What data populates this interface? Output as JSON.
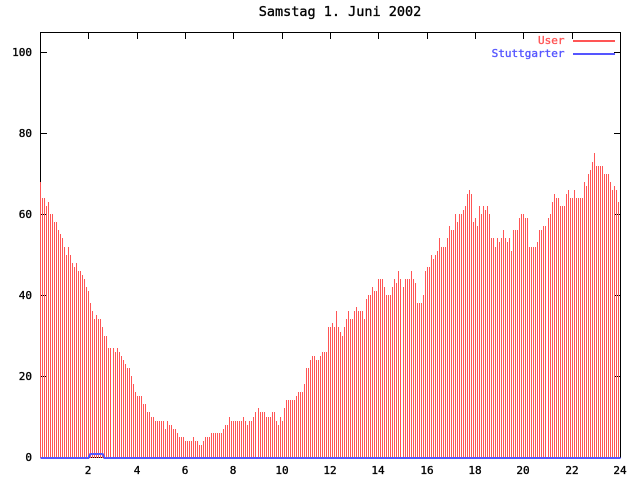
{
  "title": "Samstag 1. Juni 2002",
  "legend": [
    {
      "label": "User",
      "color": "#ff5555"
    },
    {
      "label": "Stuttgarter",
      "color": "#5555ff"
    }
  ],
  "axes": {
    "x": {
      "min": 0,
      "max": 24,
      "tick_labels": [
        "2",
        "4",
        "6",
        "8",
        "10",
        "12",
        "14",
        "16",
        "18",
        "20",
        "22",
        "24"
      ],
      "tick_values": [
        2,
        4,
        6,
        8,
        10,
        12,
        14,
        16,
        18,
        20,
        22,
        24
      ]
    },
    "y": {
      "min": 0,
      "max": 105,
      "tick_labels": [
        "0",
        "20",
        "40",
        "60",
        "80",
        "100"
      ],
      "tick_values": [
        0,
        20,
        40,
        60,
        80,
        100
      ]
    }
  },
  "chart_data": {
    "type": "bar",
    "title": "Samstag 1. Juni 2002",
    "xlabel": "",
    "ylabel": "",
    "xlim": [
      0,
      24
    ],
    "ylim": [
      0,
      105
    ],
    "grid": false,
    "legend_position": "top-right",
    "sampling": "one sample every 5 minutes (288 samples), impulse style bars",
    "x_hours": [
      0.0,
      0.0833,
      0.1667,
      0.25,
      0.3333,
      0.4167,
      0.5,
      0.5833,
      0.6667,
      0.75,
      0.8333,
      0.9167,
      1.0,
      1.0833,
      1.1667,
      1.25,
      1.3333,
      1.4167,
      1.5,
      1.5833,
      1.6667,
      1.75,
      1.8333,
      1.9167,
      2.0,
      2.0833,
      2.1667,
      2.25,
      2.3333,
      2.4167,
      2.5,
      2.5833,
      2.6667,
      2.75,
      2.8333,
      2.9167,
      3.0,
      3.0833,
      3.1667,
      3.25,
      3.3333,
      3.4167,
      3.5,
      3.5833,
      3.6667,
      3.75,
      3.8333,
      3.9167,
      4.0,
      4.0833,
      4.1667,
      4.25,
      4.3333,
      4.4167,
      4.5,
      4.5833,
      4.6667,
      4.75,
      4.8333,
      4.9167,
      5.0,
      5.0833,
      5.1667,
      5.25,
      5.3333,
      5.4167,
      5.5,
      5.5833,
      5.6667,
      5.75,
      5.8333,
      5.9167,
      6.0,
      6.0833,
      6.1667,
      6.25,
      6.3333,
      6.4167,
      6.5,
      6.5833,
      6.6667,
      6.75,
      6.8333,
      6.9167,
      7.0,
      7.0833,
      7.1667,
      7.25,
      7.3333,
      7.4167,
      7.5,
      7.5833,
      7.6667,
      7.75,
      7.8333,
      7.9167,
      8.0,
      8.0833,
      8.1667,
      8.25,
      8.3333,
      8.4167,
      8.5,
      8.5833,
      8.6667,
      8.75,
      8.8333,
      8.9167,
      9.0,
      9.0833,
      9.1667,
      9.25,
      9.3333,
      9.4167,
      9.5,
      9.5833,
      9.6667,
      9.75,
      9.8333,
      9.9167,
      10.0,
      10.0833,
      10.1667,
      10.25,
      10.3333,
      10.4167,
      10.5,
      10.5833,
      10.6667,
      10.75,
      10.8333,
      10.9167,
      11.0,
      11.0833,
      11.1667,
      11.25,
      11.3333,
      11.4167,
      11.5,
      11.5833,
      11.6667,
      11.75,
      11.8333,
      11.9167,
      12.0,
      12.0833,
      12.1667,
      12.25,
      12.3333,
      12.4167,
      12.5,
      12.5833,
      12.6667,
      12.75,
      12.8333,
      12.9167,
      13.0,
      13.0833,
      13.1667,
      13.25,
      13.3333,
      13.4167,
      13.5,
      13.5833,
      13.6667,
      13.75,
      13.8333,
      13.9167,
      14.0,
      14.0833,
      14.1667,
      14.25,
      14.3333,
      14.4167,
      14.5,
      14.5833,
      14.6667,
      14.75,
      14.8333,
      14.9167,
      15.0,
      15.0833,
      15.1667,
      15.25,
      15.3333,
      15.4167,
      15.5,
      15.5833,
      15.6667,
      15.75,
      15.8333,
      15.9167,
      16.0,
      16.0833,
      16.1667,
      16.25,
      16.3333,
      16.4167,
      16.5,
      16.5833,
      16.6667,
      16.75,
      16.8333,
      16.9167,
      17.0,
      17.0833,
      17.1667,
      17.25,
      17.3333,
      17.4167,
      17.5,
      17.5833,
      17.6667,
      17.75,
      17.8333,
      17.9167,
      18.0,
      18.0833,
      18.1667,
      18.25,
      18.3333,
      18.4167,
      18.5,
      18.5833,
      18.6667,
      18.75,
      18.8333,
      18.9167,
      19.0,
      19.0833,
      19.1667,
      19.25,
      19.3333,
      19.4167,
      19.5,
      19.5833,
      19.6667,
      19.75,
      19.8333,
      19.9167,
      20.0,
      20.0833,
      20.1667,
      20.25,
      20.3333,
      20.4167,
      20.5,
      20.5833,
      20.6667,
      20.75,
      20.8333,
      20.9167,
      21.0,
      21.0833,
      21.1667,
      21.25,
      21.3333,
      21.4167,
      21.5,
      21.5833,
      21.6667,
      21.75,
      21.8333,
      21.9167,
      22.0,
      22.0833,
      22.1667,
      22.25,
      22.3333,
      22.4167,
      22.5,
      22.5833,
      22.6667,
      22.75,
      22.8333,
      22.9167,
      23.0,
      23.0833,
      23.1667,
      23.25,
      23.3333,
      23.4167,
      23.5,
      23.5833,
      23.6667,
      23.75,
      23.8333,
      23.9167
    ],
    "series": [
      {
        "name": "User",
        "color": "#ff5555",
        "style": "impulses",
        "values": [
          68,
          64,
          64,
          62,
          63,
          60,
          60,
          58,
          58,
          56,
          55,
          54,
          52,
          50,
          52,
          50,
          48,
          47,
          48,
          46,
          46,
          45,
          44,
          42,
          41,
          38,
          36,
          34,
          35,
          34,
          34,
          32,
          30,
          30,
          27,
          27,
          27,
          26,
          27,
          26,
          25,
          24,
          23,
          22,
          22,
          20,
          18,
          16,
          15,
          15,
          15,
          13,
          13,
          11,
          11,
          10,
          10,
          9,
          9,
          9,
          9,
          9,
          7,
          9,
          8,
          8,
          7,
          7,
          6,
          5,
          5,
          5,
          4,
          4,
          4,
          4,
          5,
          4,
          4,
          3,
          3,
          4,
          5,
          5,
          5,
          6,
          6,
          6,
          6,
          6,
          6,
          7,
          8,
          8,
          10,
          9,
          9,
          9,
          9,
          9,
          9,
          10,
          9,
          8,
          9,
          9,
          10,
          11,
          12,
          11,
          11,
          11,
          10,
          10,
          10,
          11,
          11,
          9,
          8,
          10,
          9,
          12,
          14,
          14,
          14,
          14,
          14,
          15,
          16,
          16,
          16,
          18,
          22,
          22,
          24,
          25,
          25,
          24,
          24,
          25,
          26,
          26,
          26,
          32,
          32,
          33,
          32,
          36,
          32,
          31,
          30,
          32,
          34,
          36,
          34,
          34,
          36,
          37,
          36,
          36,
          36,
          34,
          39,
          40,
          40,
          42,
          41,
          41,
          44,
          44,
          44,
          42,
          40,
          40,
          40,
          42,
          44,
          43,
          46,
          44,
          42,
          44,
          44,
          44,
          46,
          44,
          43,
          38,
          38,
          38,
          40,
          46,
          47,
          47,
          50,
          49,
          50,
          51,
          54,
          52,
          52,
          52,
          54,
          57,
          56,
          56,
          60,
          58,
          60,
          60,
          61,
          62,
          65,
          66,
          65,
          58,
          59,
          57,
          62,
          60,
          62,
          61,
          62,
          60,
          54,
          54,
          52,
          54,
          53,
          54,
          56,
          54,
          53,
          54,
          51,
          56,
          56,
          56,
          59,
          60,
          60,
          59,
          59,
          52,
          52,
          52,
          52,
          53,
          56,
          56,
          57,
          57,
          59,
          60,
          63,
          65,
          64,
          64,
          62,
          62,
          62,
          65,
          66,
          64,
          64,
          66,
          64,
          64,
          64,
          64,
          68,
          67,
          70,
          71,
          73,
          75,
          72,
          72,
          72,
          72,
          70,
          70,
          70,
          68,
          66,
          67,
          66,
          63
        ]
      },
      {
        "name": "Stuttgarter",
        "color": "#5555ff",
        "style": "line",
        "values": [
          0,
          0,
          0,
          0,
          0,
          0,
          0,
          0,
          0,
          0,
          0,
          0,
          0,
          0,
          0,
          0,
          0,
          0,
          0,
          0,
          0,
          0,
          0,
          0,
          0,
          1,
          1,
          1,
          1,
          1,
          1,
          1,
          0,
          0,
          0,
          0,
          0,
          0,
          0,
          0,
          0,
          0,
          0,
          0,
          0,
          0,
          0,
          0,
          0,
          0,
          0,
          0,
          0,
          0,
          0,
          0,
          0,
          0,
          0,
          0,
          0,
          0,
          0,
          0,
          0,
          0,
          0,
          0,
          0,
          0,
          0,
          0,
          0,
          0,
          0,
          0,
          0,
          0,
          0,
          0,
          0,
          0,
          0,
          0,
          0,
          0,
          0,
          0,
          0,
          0,
          0,
          0,
          0,
          0,
          0,
          0,
          0,
          0,
          0,
          0,
          0,
          0,
          0,
          0,
          0,
          0,
          0,
          0,
          0,
          0,
          0,
          0,
          0,
          0,
          0,
          0,
          0,
          0,
          0,
          0,
          0,
          0,
          0,
          0,
          0,
          0,
          0,
          0,
          0,
          0,
          0,
          0,
          0,
          0,
          0,
          0,
          0,
          0,
          0,
          0,
          0,
          0,
          0,
          0,
          0,
          0,
          0,
          0,
          0,
          0,
          0,
          0,
          0,
          0,
          0,
          0,
          0,
          0,
          0,
          0,
          0,
          0,
          0,
          0,
          0,
          0,
          0,
          0,
          0,
          0,
          0,
          0,
          0,
          0,
          0,
          0,
          0,
          0,
          0,
          0,
          0,
          0,
          0,
          0,
          0,
          0,
          0,
          0,
          0,
          0,
          0,
          0,
          0,
          0,
          0,
          0,
          0,
          0,
          0,
          0,
          0,
          0,
          0,
          0,
          0,
          0,
          0,
          0,
          0,
          0,
          0,
          0,
          0,
          0,
          0,
          0,
          0,
          0,
          0,
          0,
          0,
          0,
          0,
          0,
          0,
          0,
          0,
          0,
          0,
          0,
          0,
          0,
          0,
          0,
          0,
          0,
          0,
          0,
          0,
          0,
          0,
          0,
          0,
          0,
          0,
          0,
          0,
          0,
          0,
          0,
          0,
          0,
          0,
          0,
          0,
          0,
          0,
          0,
          0,
          0,
          0,
          0,
          0,
          0,
          0,
          0,
          0,
          0,
          0,
          0,
          0,
          0,
          0,
          0,
          0,
          0,
          0,
          0,
          0,
          0,
          0,
          0,
          0,
          0,
          0,
          0,
          0,
          0
        ]
      }
    ]
  },
  "colors": {
    "background": "#ffffff",
    "border": "#000000",
    "text": "#000000",
    "user": "#ff5555",
    "stuttgarter": "#5555ff"
  }
}
